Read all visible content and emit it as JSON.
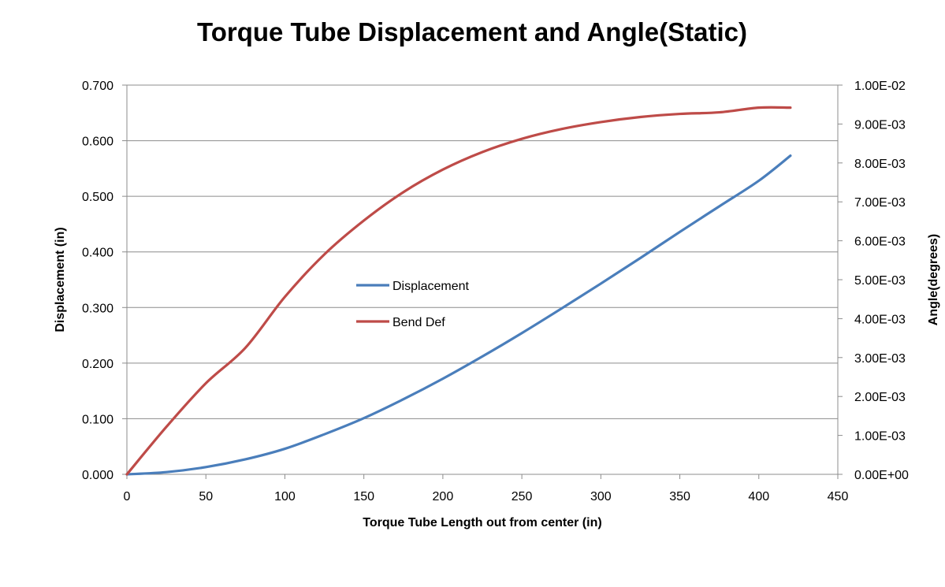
{
  "chart_data": {
    "type": "line",
    "title": "Torque Tube Displacement and Angle(Static)",
    "xlabel": "Torque Tube Length out from center (in)",
    "ylabel": "Displacement (in)",
    "y2label": "Angle(degrees)",
    "xlim": [
      0,
      450
    ],
    "ylim": [
      0,
      0.7
    ],
    "y2lim": [
      0,
      0.01
    ],
    "x_ticks": [
      "0",
      "50",
      "100",
      "150",
      "200",
      "250",
      "300",
      "350",
      "400",
      "450"
    ],
    "y_ticks": [
      "0.000",
      "0.100",
      "0.200",
      "0.300",
      "0.400",
      "0.500",
      "0.600",
      "0.700"
    ],
    "y2_ticks": [
      "0.00E+00",
      "1.00E-03",
      "2.00E-03",
      "3.00E-03",
      "4.00E-03",
      "5.00E-03",
      "6.00E-03",
      "7.00E-03",
      "8.00E-03",
      "9.00E-03",
      "1.00E-02"
    ],
    "grid": "horizontal",
    "legend_position": "center",
    "series": [
      {
        "name": "Displacement",
        "axis": "left",
        "color": "#4a7ebb",
        "x": [
          0,
          25,
          50,
          75,
          100,
          125,
          150,
          175,
          200,
          225,
          250,
          275,
          300,
          325,
          350,
          375,
          400,
          420
        ],
        "y": [
          0.0,
          0.004,
          0.013,
          0.027,
          0.046,
          0.072,
          0.101,
          0.135,
          0.172,
          0.212,
          0.254,
          0.298,
          0.343,
          0.389,
          0.436,
          0.482,
          0.528,
          0.573
        ]
      },
      {
        "name": "Bend Def",
        "axis": "right",
        "color": "#be4b48",
        "x": [
          0,
          25,
          50,
          75,
          100,
          125,
          150,
          175,
          200,
          225,
          250,
          275,
          300,
          325,
          350,
          375,
          400,
          420
        ],
        "y": [
          0.0,
          0.00122,
          0.00234,
          0.00325,
          0.00456,
          0.00565,
          0.00652,
          0.00725,
          0.00783,
          0.00828,
          0.00862,
          0.00887,
          0.00905,
          0.00918,
          0.00926,
          0.0093,
          0.00942,
          0.00942
        ]
      }
    ]
  }
}
